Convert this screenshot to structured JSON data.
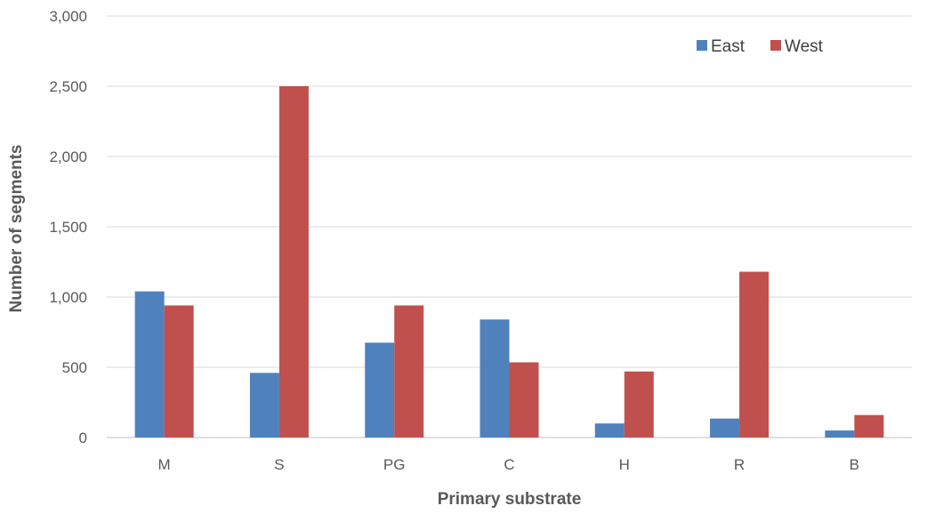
{
  "chart_data": {
    "type": "bar",
    "title": "",
    "xlabel": "Primary substrate",
    "ylabel": "Number of segments",
    "categories": [
      "M",
      "S",
      "PG",
      "C",
      "H",
      "R",
      "B"
    ],
    "series": [
      {
        "name": "East",
        "color": "#4f81bd",
        "values": [
          1040,
          460,
          675,
          840,
          100,
          135,
          50
        ]
      },
      {
        "name": "West",
        "color": "#c0504d",
        "values": [
          940,
          2500,
          940,
          535,
          470,
          1180,
          160
        ]
      }
    ],
    "ylim": [
      0,
      3000
    ],
    "yticks": [
      0,
      500,
      1000,
      1500,
      2000,
      2500,
      3000
    ],
    "ytick_labels": [
      "0",
      "500",
      "1,000",
      "1,500",
      "2,000",
      "2,500",
      "3,000"
    ],
    "grid": true,
    "legend_position": "top-right"
  }
}
